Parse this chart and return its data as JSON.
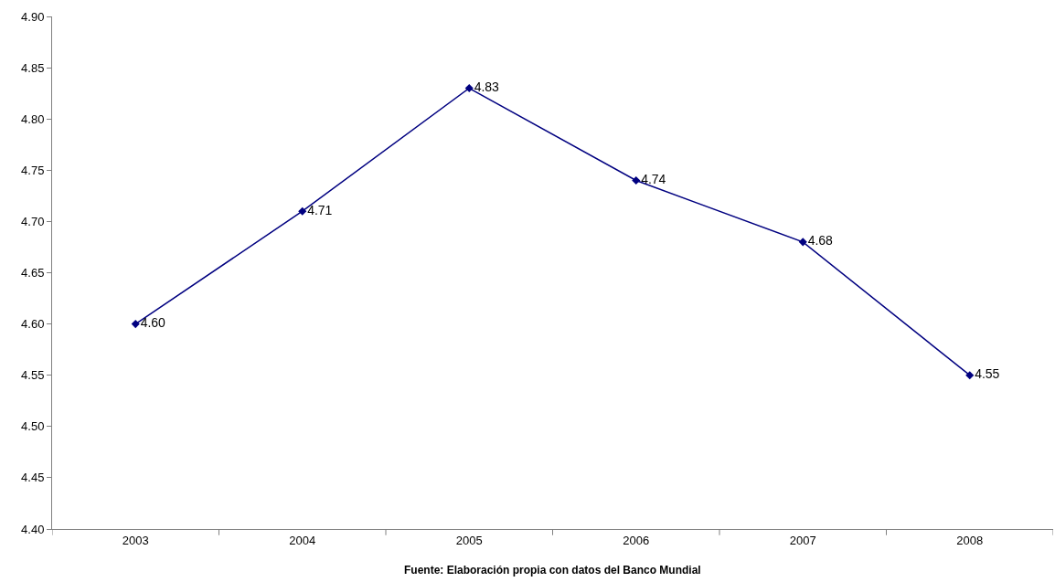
{
  "chart_data": {
    "type": "line",
    "categories": [
      "2003",
      "2004",
      "2005",
      "2006",
      "2007",
      "2008"
    ],
    "series": [
      {
        "color": "#000080",
        "values": [
          4.6,
          4.71,
          4.83,
          4.74,
          4.68,
          4.55
        ],
        "value_labels": [
          "4.60",
          "4.71",
          "4.83",
          "4.74",
          "4.68",
          "4.55"
        ]
      }
    ],
    "ylim": [
      4.4,
      4.9
    ],
    "yticks": [
      {
        "value": 4.4,
        "label": "4.40"
      },
      {
        "value": 4.45,
        "label": "4.45"
      },
      {
        "value": 4.5,
        "label": "4.50"
      },
      {
        "value": 4.55,
        "label": "4.55"
      },
      {
        "value": 4.6,
        "label": "4.60"
      },
      {
        "value": 4.65,
        "label": "4.65"
      },
      {
        "value": 4.7,
        "label": "4.70"
      },
      {
        "value": 4.75,
        "label": "4.75"
      },
      {
        "value": 4.8,
        "label": "4.80"
      },
      {
        "value": 4.85,
        "label": "4.85"
      },
      {
        "value": 4.9,
        "label": "4.90"
      }
    ],
    "marker": "diamond",
    "line_style": "solid",
    "legend": false,
    "annotations": [
      "Fuente: Elaboración propia con datos del Banco Mundial"
    ]
  }
}
